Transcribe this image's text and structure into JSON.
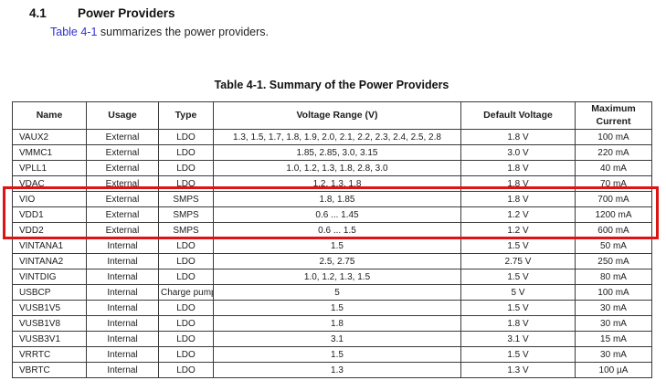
{
  "section": {
    "number": "4.1",
    "title": "Power Providers"
  },
  "intro": {
    "link_text": "Table 4-1",
    "text": " summarizes the power providers."
  },
  "table": {
    "title": "Table 4-1. Summary of the Power Providers",
    "columns": [
      "Name",
      "Usage",
      "Type",
      "Voltage Range (V)",
      "Default Voltage",
      "Maximum Current"
    ],
    "rows": [
      {
        "name": "VAUX2",
        "usage": "External",
        "type": "LDO",
        "voltage_range": "1.3, 1.5, 1.7, 1.8, 1.9, 2.0, 2.1, 2.2, 2.3, 2.4, 2.5, 2.8",
        "default_voltage": "1.8 V",
        "max_current": "100 mA",
        "highlighted": false
      },
      {
        "name": "VMMC1",
        "usage": "External",
        "type": "LDO",
        "voltage_range": "1.85, 2.85, 3.0, 3.15",
        "default_voltage": "3.0 V",
        "max_current": "220 mA",
        "highlighted": false
      },
      {
        "name": "VPLL1",
        "usage": "External",
        "type": "LDO",
        "voltage_range": "1.0, 1.2, 1.3, 1.8, 2.8, 3.0",
        "default_voltage": "1.8 V",
        "max_current": "40 mA",
        "highlighted": false
      },
      {
        "name": "VDAC",
        "usage": "External",
        "type": "LDO",
        "voltage_range": "1.2, 1.3, 1.8",
        "default_voltage": "1.8 V",
        "max_current": "70 mA",
        "highlighted": false
      },
      {
        "name": "VIO",
        "usage": "External",
        "type": "SMPS",
        "voltage_range": "1.8, 1.85",
        "default_voltage": "1.8 V",
        "max_current": "700 mA",
        "highlighted": true
      },
      {
        "name": "VDD1",
        "usage": "External",
        "type": "SMPS",
        "voltage_range": "0.6 ... 1.45",
        "default_voltage": "1.2 V",
        "max_current": "1200 mA",
        "highlighted": true
      },
      {
        "name": "VDD2",
        "usage": "External",
        "type": "SMPS",
        "voltage_range": "0.6 ... 1.5",
        "default_voltage": "1.2 V",
        "max_current": "600 mA",
        "highlighted": true
      },
      {
        "name": "VINTANA1",
        "usage": "Internal",
        "type": "LDO",
        "voltage_range": "1.5",
        "default_voltage": "1.5 V",
        "max_current": "50 mA",
        "highlighted": false
      },
      {
        "name": "VINTANA2",
        "usage": "Internal",
        "type": "LDO",
        "voltage_range": "2.5, 2.75",
        "default_voltage": "2.75 V",
        "max_current": "250 mA",
        "highlighted": false
      },
      {
        "name": "VINTDIG",
        "usage": "Internal",
        "type": "LDO",
        "voltage_range": "1.0, 1.2, 1.3, 1.5",
        "default_voltage": "1.5 V",
        "max_current": "80 mA",
        "highlighted": false
      },
      {
        "name": "USBCP",
        "usage": "Internal",
        "type": "Charge pump",
        "voltage_range": "5",
        "default_voltage": "5 V",
        "max_current": "100 mA",
        "highlighted": false
      },
      {
        "name": "VUSB1V5",
        "usage": "Internal",
        "type": "LDO",
        "voltage_range": "1.5",
        "default_voltage": "1.5 V",
        "max_current": "30 mA",
        "highlighted": false
      },
      {
        "name": "VUSB1V8",
        "usage": "Internal",
        "type": "LDO",
        "voltage_range": "1.8",
        "default_voltage": "1.8 V",
        "max_current": "30 mA",
        "highlighted": false
      },
      {
        "name": "VUSB3V1",
        "usage": "Internal",
        "type": "LDO",
        "voltage_range": "3.1",
        "default_voltage": "3.1 V",
        "max_current": "15 mA",
        "highlighted": false
      },
      {
        "name": "VRRTC",
        "usage": "Internal",
        "type": "LDO",
        "voltage_range": "1.5",
        "default_voltage": "1.5 V",
        "max_current": "30 mA",
        "highlighted": false
      },
      {
        "name": "VBRTC",
        "usage": "Internal",
        "type": "LDO",
        "voltage_range": "1.3",
        "default_voltage": "1.3 V",
        "max_current": "100 µA",
        "highlighted": false
      }
    ]
  },
  "colors": {
    "link_blue": "#2f2fd0",
    "highlight_red": "#de1414",
    "table_border": "#3a3a3a"
  }
}
